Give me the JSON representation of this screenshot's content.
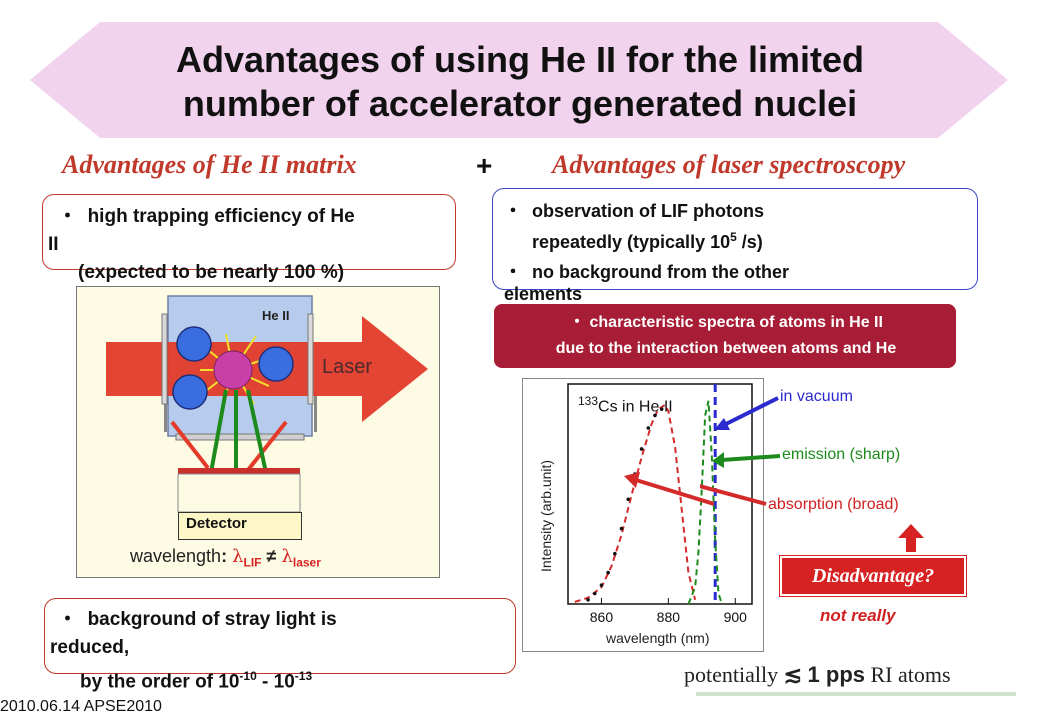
{
  "title": {
    "line1": "Advantages of using He II for the limited",
    "line2": "number of accelerator generated nuclei"
  },
  "heads": {
    "left": "Advantages of He II matrix",
    "plus": "+",
    "right": "Advantages of laser spectroscopy"
  },
  "box_trap": {
    "bullet": "・",
    "line1": "high trapping efficiency of He",
    "line2": "II",
    "line3": "(expected to be nearly 100 %)"
  },
  "box_lif": {
    "bullet1": "・",
    "line1": "observation of LIF photons",
    "line2_pre": "repeatedly (typically 10",
    "line2_sup": "5",
    "line2_post": " /s)",
    "bullet2": "・",
    "line3": "no background from the other",
    "line4": "elements"
  },
  "box_spectra": {
    "bullet": "・",
    "line1": "characteristic spectra of atoms in He II",
    "line2": "due to the interaction between atoms and He"
  },
  "apparatus": {
    "he2_label": "He II",
    "laser_label": "Laser",
    "detector_label": "Detector",
    "wl_label": "wavelength",
    "wl_colon": ":",
    "lambda_lif": "λ",
    "lif_sub": "LIF",
    "neq": "≠",
    "lambda_laser": "λ",
    "laser_sub": "laser"
  },
  "box_stray": {
    "bullet": "・",
    "line1": "background of stray light is",
    "line2": "reduced,",
    "line3_pre": "by the order of 10",
    "sup1": "-10",
    "mid": " - 10",
    "sup2": "-13"
  },
  "chart_data": {
    "type": "line",
    "title_sup": "133",
    "title": "Cs in He II",
    "xlabel": "wavelength (nm)",
    "ylabel": "Intensity (arb.unit)",
    "xticks": [
      "860",
      "880",
      "900"
    ],
    "xlim": [
      850,
      905
    ],
    "ylim": [
      0,
      1.05
    ],
    "vacuum_line_x": 894,
    "series": [
      {
        "style": "red-dashed",
        "x": [
          852,
          856,
          860,
          863,
          866,
          869,
          872,
          875,
          877,
          879,
          880,
          882,
          884,
          886,
          888
        ],
        "y": [
          0.01,
          0.03,
          0.08,
          0.18,
          0.33,
          0.52,
          0.7,
          0.86,
          0.93,
          0.95,
          0.92,
          0.75,
          0.45,
          0.15,
          0.02
        ]
      },
      {
        "style": "black-dots",
        "x": [
          856,
          858,
          860,
          862,
          864,
          866,
          868,
          870,
          872,
          874,
          876,
          878
        ],
        "y": [
          0.02,
          0.05,
          0.09,
          0.15,
          0.24,
          0.36,
          0.5,
          0.62,
          0.74,
          0.84,
          0.9,
          0.93
        ]
      },
      {
        "style": "green-dashed",
        "x": [
          886,
          888,
          889,
          890,
          891,
          892,
          893,
          894,
          895,
          896
        ],
        "y": [
          0.0,
          0.08,
          0.25,
          0.55,
          0.9,
          0.97,
          0.7,
          0.3,
          0.05,
          0.0
        ]
      }
    ]
  },
  "annotations": {
    "in_vacuum": "in vacuum",
    "emission": "emission (sharp)",
    "absorption": "absorption (broad)",
    "disadvantage": "Disadvantage?",
    "not_really": "not really"
  },
  "footer": {
    "date": "2010.06.14 APSE2010",
    "potentially": "potentially",
    "approx": "≲",
    "rate": "1 pps",
    "ri": "RI atoms"
  },
  "colors": {
    "banner": "#f2d3ee",
    "accent_red": "#c0392b",
    "dark_red_box": "#a81d36",
    "blue_border": "#3b48c6",
    "chart_red": "#d42a2a",
    "chart_green": "#1d8a1d",
    "chart_blue": "#2a2ad0"
  }
}
